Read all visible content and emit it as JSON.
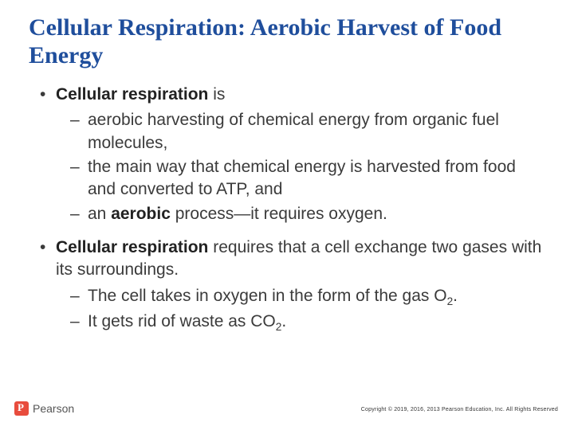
{
  "title": "Cellular Respiration: Aerobic Harvest of Food Energy",
  "bullets": [
    {
      "lead_bold": "Cellular respiration",
      "lead_rest": " is",
      "subs": [
        "aerobic harvesting of chemical energy from organic fuel molecules,",
        "the main way that chemical energy is harvested from food and converted to ATP, and",
        "an aerobic process—it requires oxygen."
      ],
      "bold_in_sub": {
        "2": "aerobic"
      }
    },
    {
      "lead_bold": "Cellular respiration",
      "lead_rest": " requires that a cell exchange two gases with its surroundings.",
      "subs": [
        "The cell takes in oxygen in the form of the gas O₂.",
        "It gets rid of waste as CO₂."
      ]
    }
  ],
  "brand": "Pearson",
  "copyright": "Copyright © 2019, 2016, 2013 Pearson Education, Inc. All Rights Reserved"
}
